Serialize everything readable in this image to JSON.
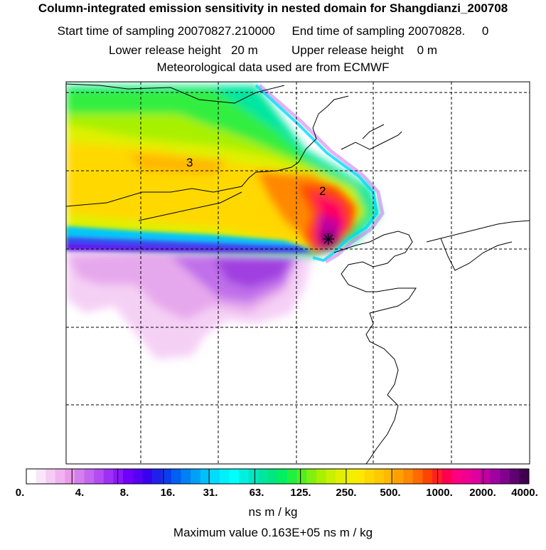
{
  "header": {
    "title": "Column-integrated emission sensitivity in nested domain for Shangdianzi_200708",
    "sampling": "Start time of sampling 20070827.210000     End time of sampling 20070828.     0",
    "release": "Lower release height   20 m          Upper release height    0 m",
    "met": "Meteorological data used are from ECMWF"
  },
  "map": {
    "contour_labels": [
      "3",
      "2"
    ],
    "receptor_marker": "cross-star"
  },
  "colorbar": {
    "tick_labels": [
      "0.",
      "4.",
      "8.",
      "16.",
      "31.",
      "63.",
      "125.",
      "250.",
      "500.",
      "1000.",
      "2000.",
      "4000."
    ],
    "colors": [
      "#ffffff",
      "#fae6fa",
      "#f5ccf5",
      "#f0b3f0",
      "#eb99eb",
      "#d47fee",
      "#c566f1",
      "#b44cf4",
      "#a030f6",
      "#8a18f8",
      "#7000fa",
      "#5500f5",
      "#3c00f0",
      "#2020ee",
      "#0a3cf0",
      "#0060f2",
      "#0080f5",
      "#00a0f8",
      "#00c0fa",
      "#00dcfc",
      "#00f0fc",
      "#00ffff",
      "#00f0e0",
      "#00e6c0",
      "#00e6a0",
      "#00e680",
      "#00f060",
      "#20f040",
      "#50f020",
      "#80f010",
      "#a8f000",
      "#c8f000",
      "#e0f000",
      "#f0f000",
      "#ffe800",
      "#ffd800",
      "#ffc800",
      "#ffb800",
      "#ffa000",
      "#ff8800",
      "#ff6a00",
      "#ff4400",
      "#ff2020",
      "#ff0050",
      "#ff0080",
      "#f00090",
      "#e000a0",
      "#c000a0",
      "#a000a0",
      "#800090",
      "#600070",
      "#400050"
    ]
  },
  "units": "ns m / kg",
  "max_value": "Maximum value  0.163E+05 ns m / kg"
}
